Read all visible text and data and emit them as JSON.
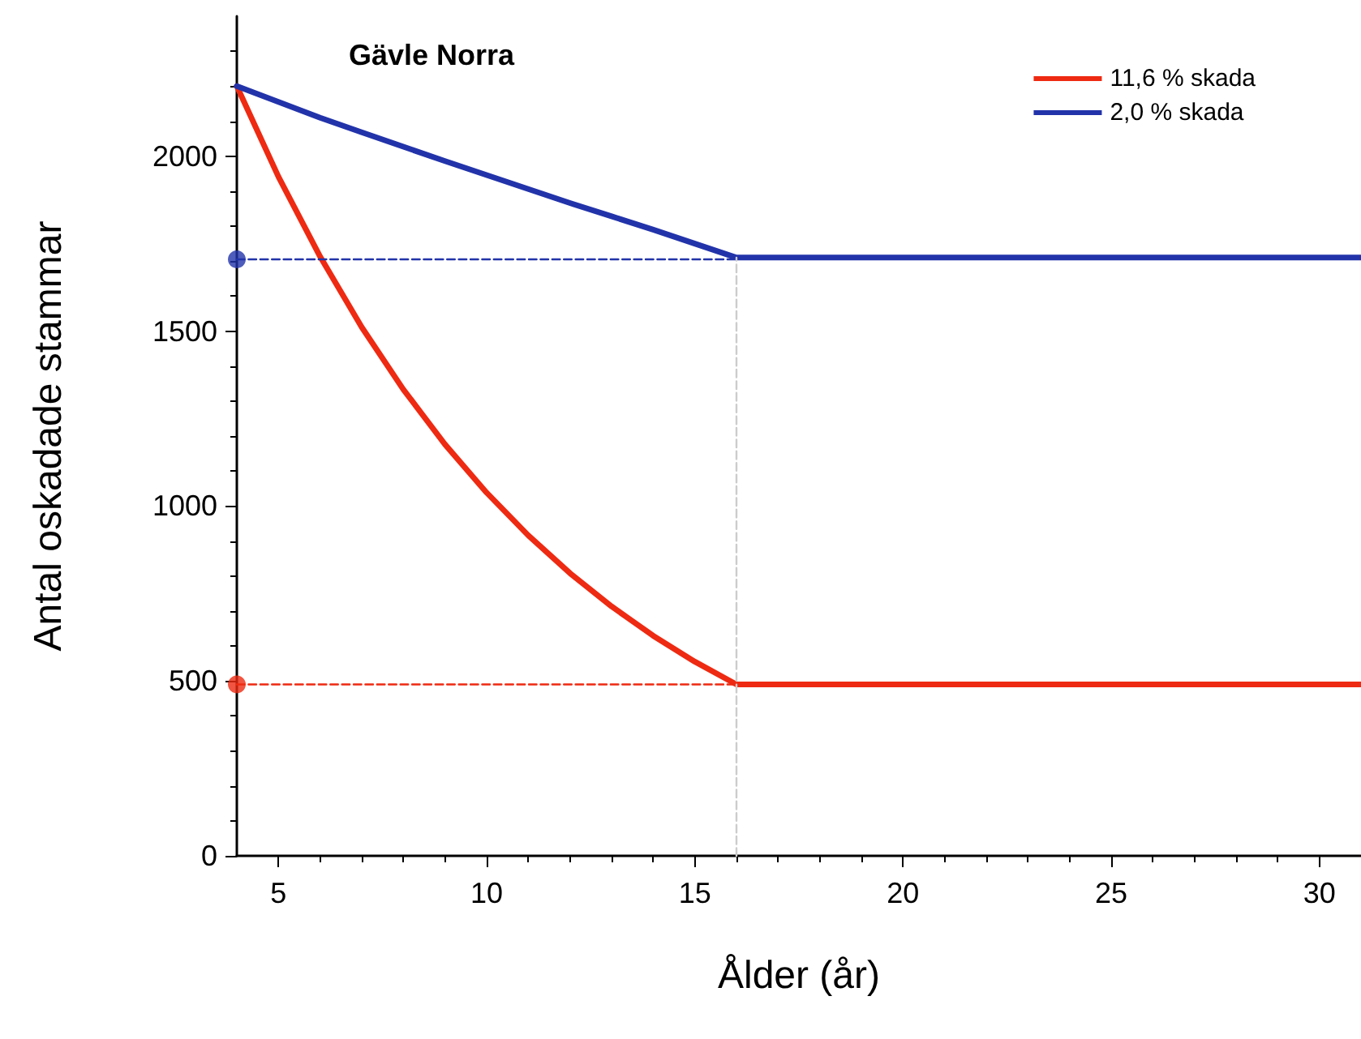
{
  "chart_data": {
    "type": "line",
    "title": "Gävle Norra",
    "xlabel": "Ålder (år)",
    "ylabel": "Antal oskadade stammar",
    "xlim": [
      4,
      31
    ],
    "xticks": [
      5,
      10,
      15,
      20,
      25,
      30
    ],
    "ylim": [
      0,
      2400
    ],
    "yticks": [
      0,
      500,
      1000,
      1500,
      2000
    ],
    "grid": false,
    "legend": "top right",
    "marker": "none",
    "line_style": "solid",
    "series": [
      {
        "name": "11,6 % skada",
        "color": "#ee2a12",
        "x": [
          4,
          5,
          6,
          7,
          8,
          9,
          10,
          11,
          12,
          13,
          14,
          15,
          16,
          31
        ],
        "values": [
          2200,
          1941,
          1713,
          1511,
          1333,
          1176,
          1038,
          916,
          808,
          713,
          629,
          555,
          490,
          490
        ]
      },
      {
        "name": "2,0 % skada",
        "color": "#2233aa",
        "x": [
          4,
          5,
          6,
          7,
          8,
          9,
          10,
          11,
          12,
          13,
          14,
          15,
          16,
          31
        ],
        "values": [
          2200,
          2155,
          2110,
          2068,
          2027,
          1986,
          1946,
          1906,
          1866,
          1828,
          1790,
          1750,
          1710,
          1710
        ]
      },
      {
        "type": "line",
        "color": "#ee2a12",
        "line_style": "dashed",
        "marker": "none",
        "x": [
          4,
          16
        ],
        "values": [
          490,
          490
        ]
      },
      {
        "type": "line",
        "color": "#2233aa",
        "line_style": "dashed",
        "marker": "none",
        "x": [
          4,
          16
        ],
        "values": [
          1705,
          1705
        ]
      },
      {
        "type": "line",
        "color": "#cccccc",
        "line_style": "dashed",
        "marker": "none",
        "x": [
          16,
          16
        ],
        "values": [
          0,
          1710
        ]
      },
      {
        "type": "scatter",
        "color": "#ee2a12",
        "marker": "circle",
        "x": [
          4
        ],
        "values": [
          490
        ]
      },
      {
        "type": "scatter",
        "color": "#2233aa",
        "marker": "circle",
        "x": [
          4
        ],
        "values": [
          1705
        ]
      }
    ]
  }
}
